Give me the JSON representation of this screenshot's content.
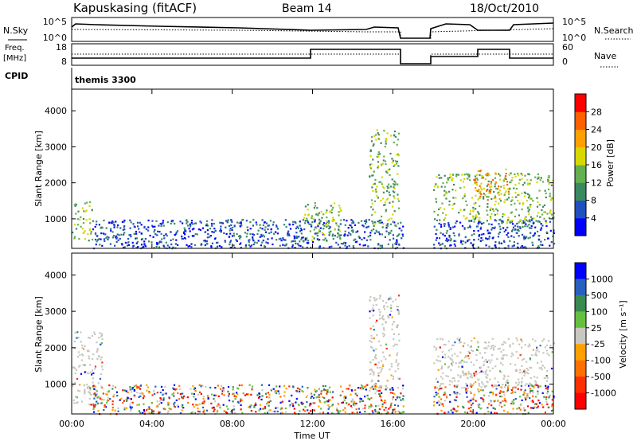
{
  "header": {
    "station": "Kapuskasing (fitACF)",
    "beam": "Beam 14",
    "date": "18/Oct/2010"
  },
  "panels": {
    "sky": {
      "left_label": "N.Sky",
      "left_ticks": [
        "10^5",
        "10^0"
      ],
      "right_ticks": [
        "10^5",
        "10^0"
      ],
      "right_label": "N.Search"
    },
    "freq": {
      "left_label_1": "Freq.",
      "left_label_2": "[MHz]",
      "left_ticks": [
        "18",
        "8"
      ],
      "right_ticks": [
        "60",
        "0"
      ],
      "right_label": "Nave"
    },
    "cpid": {
      "label": "CPID",
      "text": "themis 3300"
    }
  },
  "chart_data": [
    {
      "type": "heatmap",
      "name": "power",
      "ylabel": "Slant Range [km]",
      "xlabel": "",
      "ylim": [
        180,
        4600
      ],
      "yticks": [
        1000,
        2000,
        3000,
        4000
      ],
      "xlim": [
        0,
        24
      ],
      "grid": false,
      "colorbar": {
        "label": "Power [dB]",
        "ticks": [
          "4",
          "8",
          "12",
          "16",
          "20",
          "24",
          "28"
        ],
        "colors": [
          "#0000ff",
          "#2050c0",
          "#3a8a60",
          "#64b050",
          "#d8d800",
          "#ffa000",
          "#ff6000",
          "#ff0000"
        ]
      },
      "regions": [
        {
          "t0": 0.0,
          "t1": 1.0,
          "r0": 400,
          "r1": 1500,
          "level": "mid"
        },
        {
          "t0": 1.0,
          "t1": 16.5,
          "r0": 200,
          "r1": 1000,
          "level": "low"
        },
        {
          "t0": 11.5,
          "t1": 13.5,
          "r0": 400,
          "r1": 1500,
          "level": "mid"
        },
        {
          "t0": 14.8,
          "t1": 16.3,
          "r0": 800,
          "r1": 3500,
          "level": "mid"
        },
        {
          "t0": 18.0,
          "t1": 24.0,
          "r0": 200,
          "r1": 1000,
          "level": "low"
        },
        {
          "t0": 18.0,
          "t1": 24.0,
          "r0": 900,
          "r1": 2300,
          "level": "mid"
        },
        {
          "t0": 20.0,
          "t1": 21.8,
          "r0": 1500,
          "r1": 2400,
          "level": "high"
        }
      ]
    },
    {
      "type": "heatmap",
      "name": "velocity",
      "ylabel": "Slant Range [km]",
      "xlabel": "Time UT",
      "ylim": [
        180,
        4600
      ],
      "yticks": [
        1000,
        2000,
        3000,
        4000
      ],
      "xlim": [
        0,
        24
      ],
      "xticks": [
        "00:00",
        "04:00",
        "08:00",
        "12:00",
        "16:00",
        "20:00",
        "00:00"
      ],
      "grid": false,
      "colorbar": {
        "label": "Velocity [m s⁻¹]",
        "ticks": [
          "1000",
          "500",
          "100",
          "25",
          "-25",
          "-100",
          "-500",
          "-1000"
        ],
        "colors": [
          "#0000ff",
          "#2860c0",
          "#3a8a50",
          "#64c040",
          "#c8c8c0",
          "#ffa000",
          "#ff7000",
          "#ff3000",
          "#ff0000"
        ]
      },
      "regions": [
        {
          "t0": 0.0,
          "t1": 1.5,
          "r0": 400,
          "r1": 2500,
          "level": "ground"
        },
        {
          "t0": 1.0,
          "t1": 16.5,
          "r0": 200,
          "r1": 1000,
          "level": "mixed"
        },
        {
          "t0": 14.8,
          "t1": 16.3,
          "r0": 800,
          "r1": 3500,
          "level": "ground"
        },
        {
          "t0": 18.0,
          "t1": 24.0,
          "r0": 900,
          "r1": 2300,
          "level": "ground"
        },
        {
          "t0": 18.0,
          "t1": 24.0,
          "r0": 200,
          "r1": 1000,
          "level": "mixed"
        }
      ]
    }
  ]
}
